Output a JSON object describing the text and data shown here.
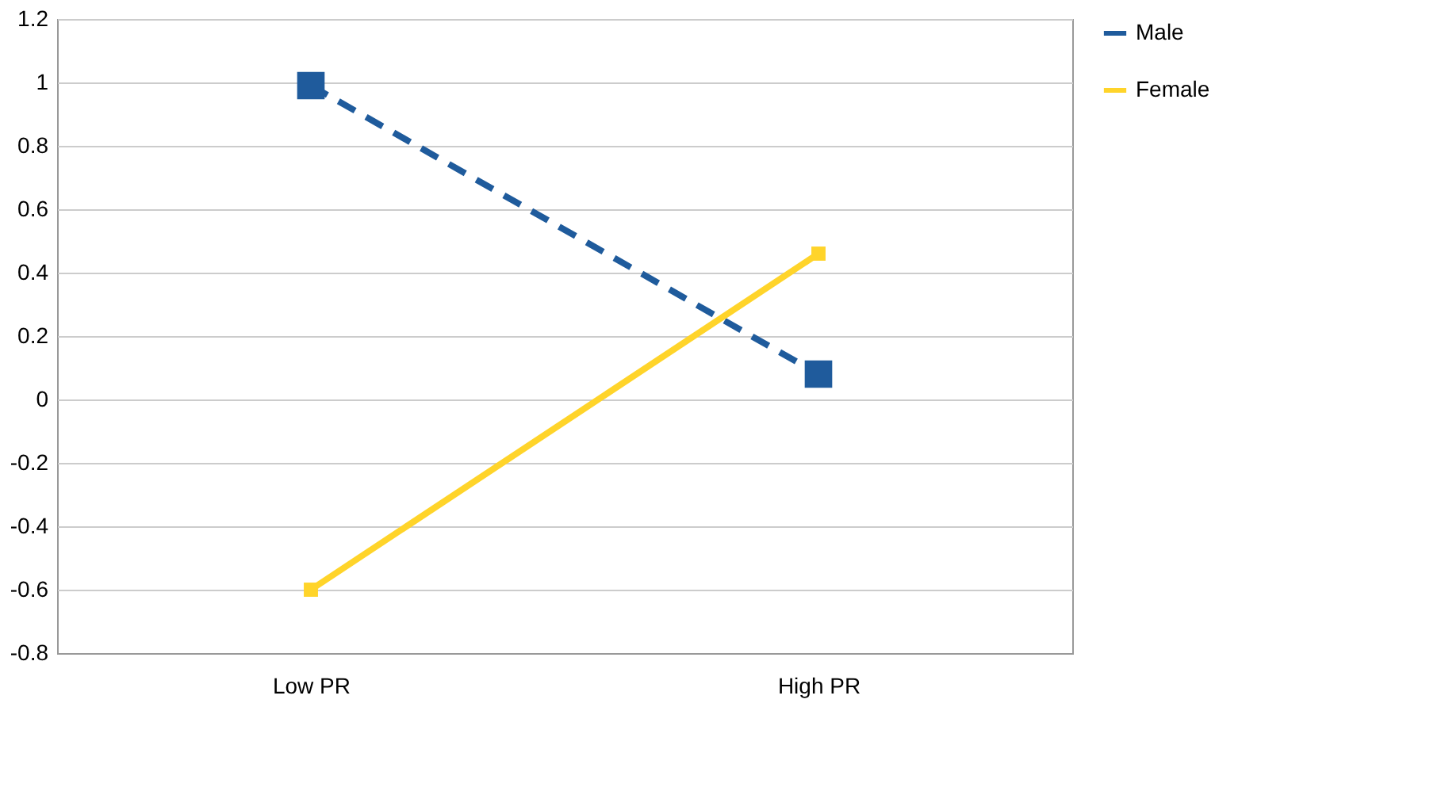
{
  "chart_data": {
    "type": "line",
    "categories": [
      "Low PR",
      "High PR"
    ],
    "series": [
      {
        "name": "Male",
        "color": "#1f5b9c",
        "values": [
          0.99,
          0.08
        ],
        "line_style": "dashed",
        "marker": "square"
      },
      {
        "name": "Female",
        "color": "#ffd42a",
        "values": [
          -0.6,
          0.46
        ],
        "line_style": "solid",
        "marker": "square"
      }
    ],
    "ylim": [
      -0.8,
      1.2
    ],
    "yticks": [
      -0.8,
      -0.6,
      -0.4,
      -0.2,
      0,
      0.2,
      0.4,
      0.6,
      0.8,
      1,
      1.2
    ],
    "grid": "y",
    "legend": "right"
  }
}
